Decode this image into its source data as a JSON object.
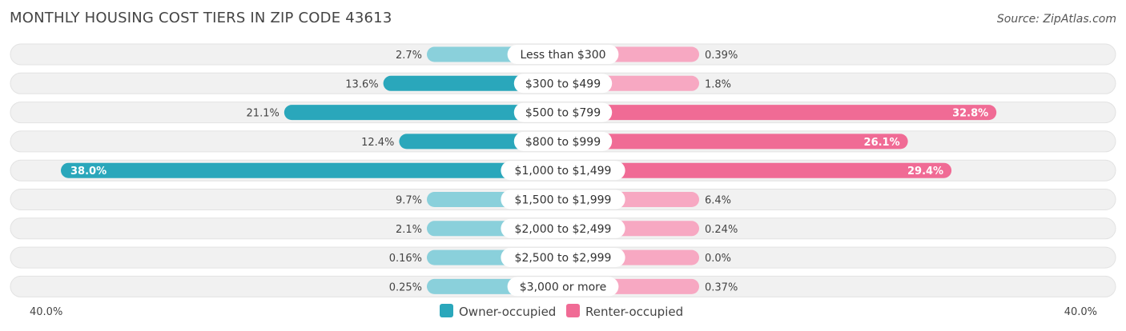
{
  "title": "MONTHLY HOUSING COST TIERS IN ZIP CODE 43613",
  "source": "Source: ZipAtlas.com",
  "chart_data": {
    "type": "bar",
    "orientation": "horizontal-diverging",
    "categories": [
      "Less than $300",
      "$300 to $499",
      "$500 to $799",
      "$800 to $999",
      "$1,000 to $1,499",
      "$1,500 to $1,999",
      "$2,000 to $2,499",
      "$2,500 to $2,999",
      "$3,000 or more"
    ],
    "series": [
      {
        "name": "Owner-occupied",
        "color": "#2aa7bb",
        "values": [
          2.7,
          13.6,
          21.1,
          12.4,
          38.0,
          9.7,
          2.1,
          0.16,
          0.25
        ],
        "labels": [
          "2.7%",
          "13.6%",
          "21.1%",
          "12.4%",
          "38.0%",
          "9.7%",
          "2.1%",
          "0.16%",
          "0.25%"
        ]
      },
      {
        "name": "Renter-occupied",
        "color": "#f06b95",
        "values": [
          0.39,
          1.8,
          32.8,
          26.1,
          29.4,
          6.4,
          0.24,
          0.0,
          0.37
        ],
        "labels": [
          "0.39%",
          "1.8%",
          "32.8%",
          "26.1%",
          "29.4%",
          "6.4%",
          "0.24%",
          "0.0%",
          "0.37%"
        ]
      }
    ],
    "xlim": [
      -40,
      40
    ],
    "axis_left_label": "40.0%",
    "axis_right_label": "40.0%",
    "legend_position": "bottom-center"
  }
}
